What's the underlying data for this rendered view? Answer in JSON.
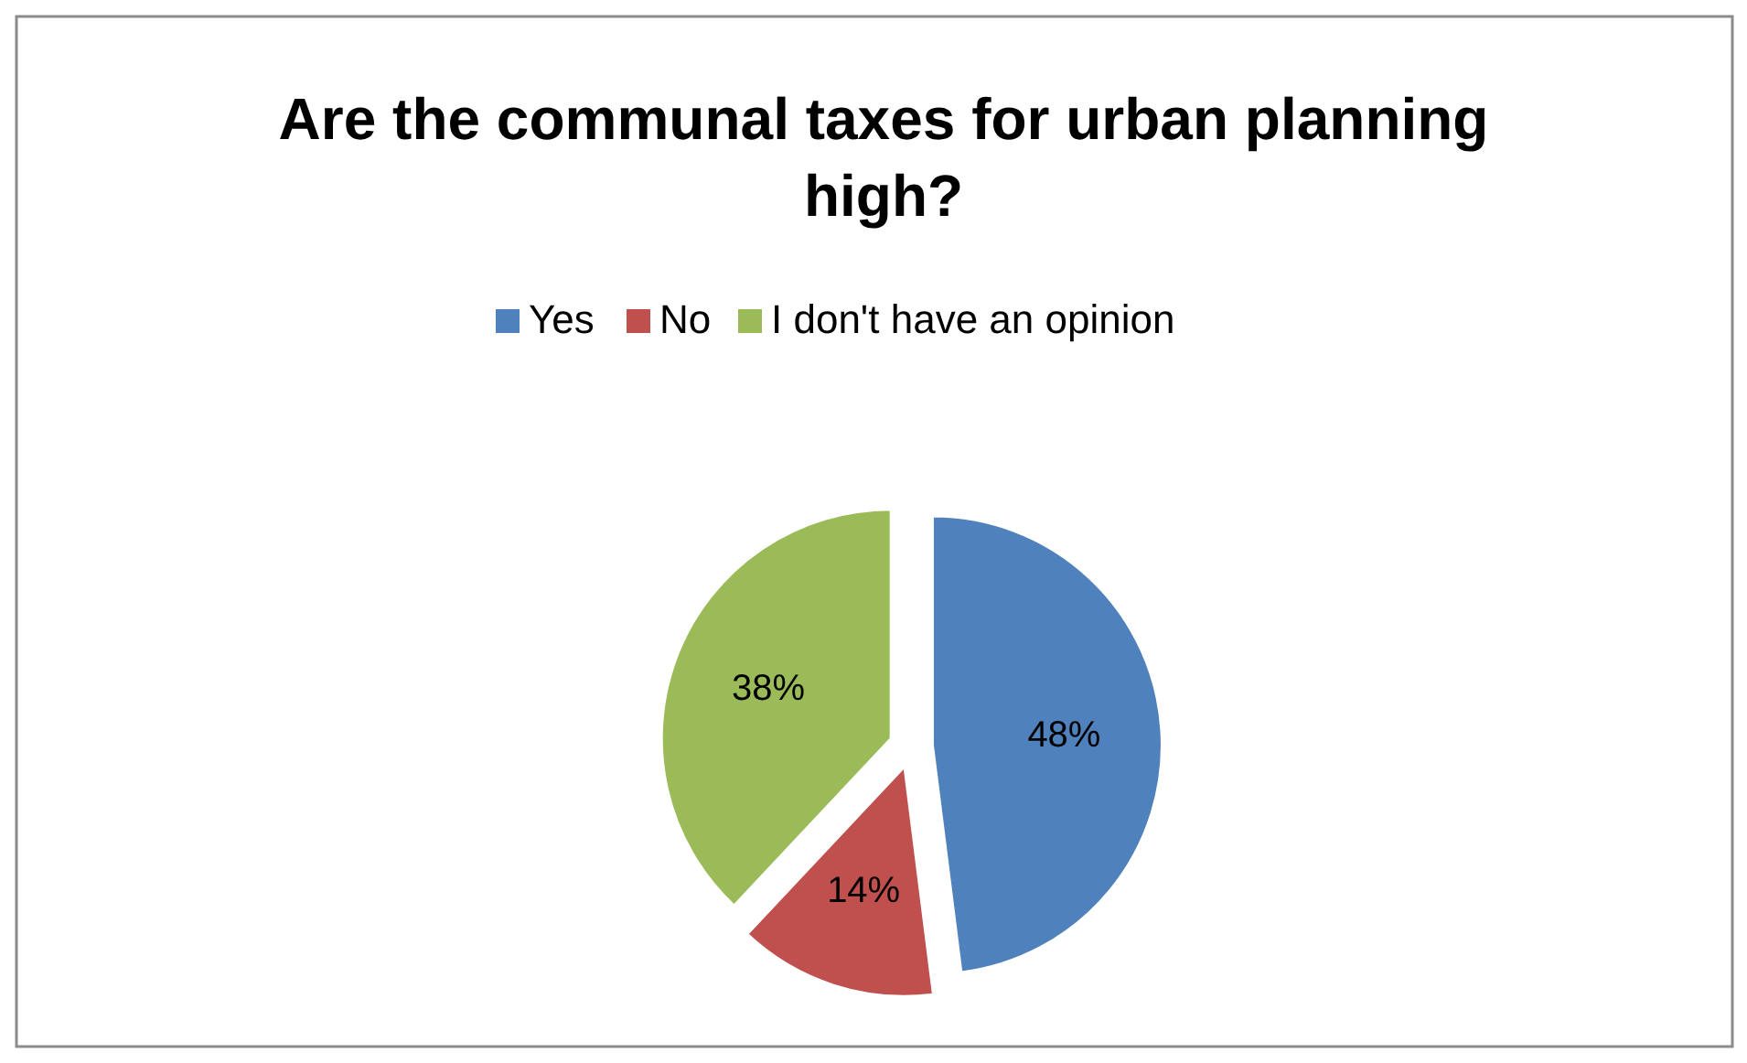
{
  "chart_data": {
    "type": "pie",
    "title": "Are the communal taxes for urban planning high?",
    "categories": [
      "Yes",
      "No",
      "I don't have an opinion"
    ],
    "values": [
      48,
      14,
      38
    ],
    "colors": [
      "#4f81bd",
      "#c0504d",
      "#9bbb59"
    ],
    "value_labels": [
      "48%",
      "14%",
      "38%"
    ],
    "legend": "top"
  }
}
